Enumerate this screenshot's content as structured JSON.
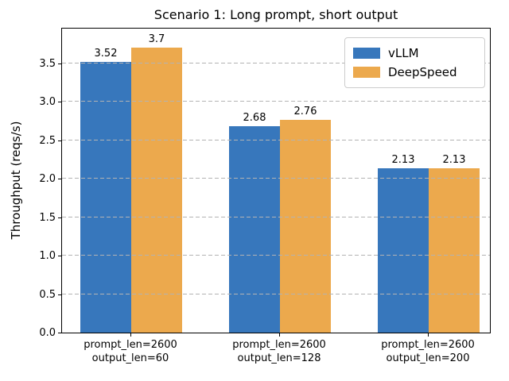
{
  "chart_data": {
    "type": "bar",
    "title": "Scenario 1: Long prompt, short output",
    "ylabel": "Throughput (reqs/s)",
    "xlabel": "",
    "categories": [
      [
        "prompt_len=2600",
        "output_len=60"
      ],
      [
        "prompt_len=2600",
        "output_len=128"
      ],
      [
        "prompt_len=2600",
        "output_len=200"
      ]
    ],
    "series": [
      {
        "name": "vLLM",
        "color": "#3777bc",
        "values": [
          3.52,
          2.68,
          2.13
        ]
      },
      {
        "name": "DeepSpeed",
        "color": "#eca94d",
        "values": [
          3.7,
          2.76,
          2.13
        ]
      }
    ],
    "bar_value_labels": [
      [
        "3.52",
        "2.68",
        "2.13"
      ],
      [
        "3.7",
        "2.76",
        "2.13"
      ]
    ],
    "ylim": [
      0,
      3.95
    ],
    "yticks": [
      "0.0",
      "0.5",
      "1.0",
      "1.5",
      "2.0",
      "2.5",
      "3.0",
      "3.5"
    ],
    "grid": "horizontal dashed, drawn over bars",
    "grid_color": "#b3b3b3",
    "legend_position": "upper right",
    "frame": true
  }
}
